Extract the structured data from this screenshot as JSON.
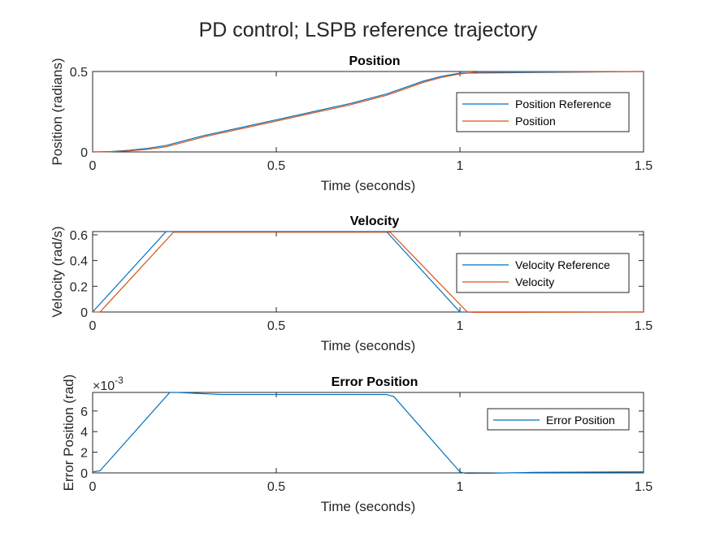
{
  "figure": {
    "title": "PD control; LSPB reference trajectory"
  },
  "colors": {
    "series1": "#0072BD",
    "series2": "#D95319",
    "axis": "#262626"
  },
  "chart_data": [
    {
      "type": "line",
      "title": "Position",
      "xlabel": "Time (seconds)",
      "ylabel": "Position (radians)",
      "xlim": [
        0,
        1.5
      ],
      "ylim": [
        0,
        0.5
      ],
      "xticks": [
        0,
        0.5,
        1,
        1.5
      ],
      "xtick_labels": [
        "0",
        "0.5",
        "1",
        "1.5"
      ],
      "yticks": [
        0,
        0.5
      ],
      "ytick_labels": [
        "0",
        "0.5"
      ],
      "exponent": "",
      "legend": "right",
      "series": [
        {
          "name": "Position Reference",
          "x": [
            0,
            0.05,
            0.1,
            0.15,
            0.2,
            0.3,
            0.4,
            0.5,
            0.6,
            0.7,
            0.8,
            0.85,
            0.9,
            0.95,
            1.0,
            1.5
          ],
          "y": [
            0,
            0.0025,
            0.01,
            0.0225,
            0.04,
            0.1,
            0.15,
            0.2,
            0.25,
            0.3,
            0.36,
            0.4,
            0.44,
            0.47,
            0.49,
            0.5
          ]
        },
        {
          "name": "Position",
          "x": [
            0,
            0.05,
            0.1,
            0.15,
            0.2,
            0.3,
            0.4,
            0.5,
            0.6,
            0.7,
            0.8,
            0.85,
            0.9,
            0.95,
            1.0,
            1.05,
            1.5
          ],
          "y": [
            0,
            0.0015,
            0.0065,
            0.016,
            0.032,
            0.092,
            0.142,
            0.192,
            0.242,
            0.292,
            0.352,
            0.392,
            0.432,
            0.463,
            0.485,
            0.497,
            0.5
          ]
        }
      ]
    },
    {
      "type": "line",
      "title": "Velocity",
      "xlabel": "Time (seconds)",
      "ylabel": "Velocity (rad/s)",
      "xlim": [
        0,
        1.5
      ],
      "ylim": [
        0,
        0.625
      ],
      "xticks": [
        0,
        0.5,
        1,
        1.5
      ],
      "xtick_labels": [
        "0",
        "0.5",
        "1",
        "1.5"
      ],
      "yticks": [
        0,
        0.2,
        0.4,
        0.6
      ],
      "ytick_labels": [
        "0",
        "0.2",
        "0.4",
        "0.6"
      ],
      "exponent": "",
      "legend": "right",
      "series": [
        {
          "name": "Velocity Reference",
          "x": [
            0,
            0.2,
            0.8,
            1.0,
            1.5
          ],
          "y": [
            0,
            0.625,
            0.625,
            0,
            0
          ]
        },
        {
          "name": "Velocity",
          "x": [
            0,
            0.02,
            0.22,
            0.81,
            1.02,
            1.04,
            1.5
          ],
          "y": [
            0,
            0.0,
            0.62,
            0.62,
            0.0,
            -0.003,
            0
          ]
        }
      ]
    },
    {
      "type": "line",
      "title": "Error Position",
      "xlabel": "Time (seconds)",
      "ylabel": "Error Position (rad)",
      "xlim": [
        0,
        1.5
      ],
      "ylim": [
        0,
        0.0078
      ],
      "xticks": [
        0,
        0.5,
        1,
        1.5
      ],
      "xtick_labels": [
        "0",
        "0.5",
        "1",
        "1.5"
      ],
      "yticks": [
        0,
        0.002,
        0.004,
        0.006
      ],
      "ytick_labels": [
        "0",
        "2",
        "4",
        "6"
      ],
      "exponent": "×10",
      "exponent_power": "-3",
      "legend": "right",
      "series": [
        {
          "name": "Error Position",
          "x": [
            0,
            0.02,
            0.21,
            0.23,
            0.35,
            0.8,
            0.82,
            1.0,
            1.02,
            1.06,
            1.2,
            1.5
          ],
          "y": [
            0.0001,
            0.0002,
            0.0078,
            0.0078,
            0.0076,
            0.0076,
            0.0074,
            0.0001,
            -0.0001,
            -5e-05,
            5e-05,
            0.0001
          ]
        }
      ]
    }
  ]
}
